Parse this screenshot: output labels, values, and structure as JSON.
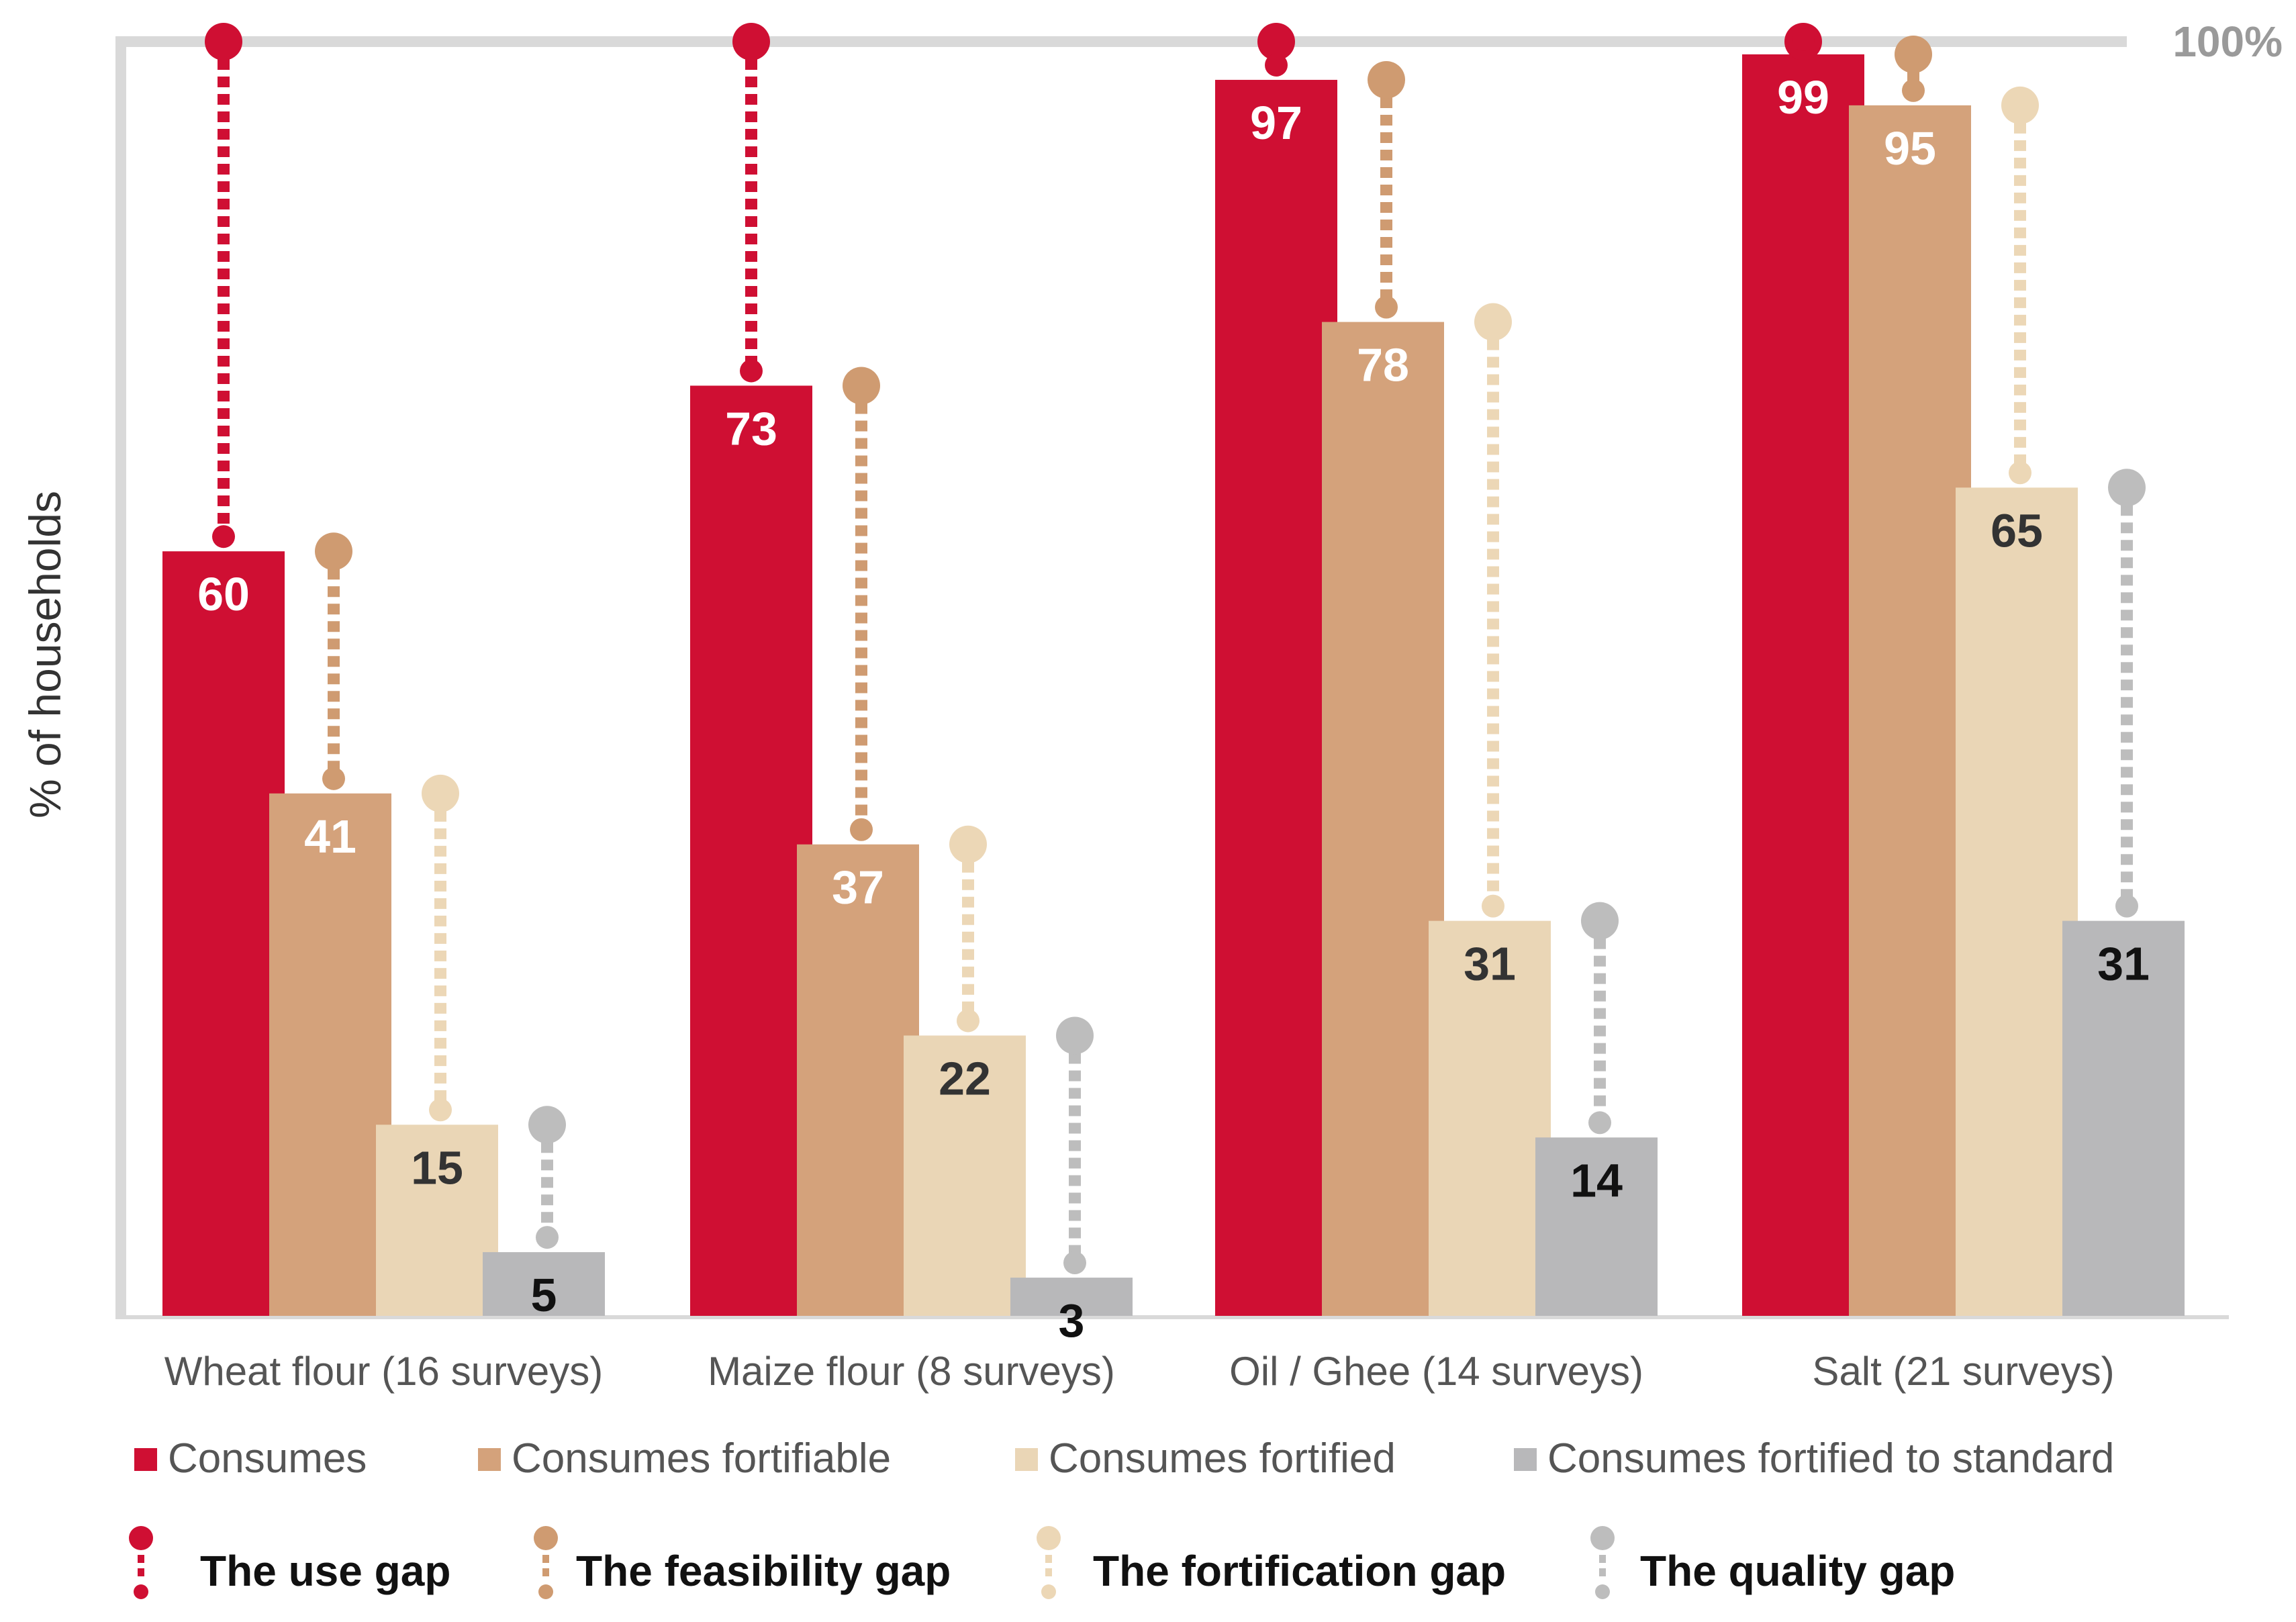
{
  "chart_data": {
    "type": "bar",
    "ylabel": "% of households",
    "top_label": "100%",
    "ylim": [
      0,
      100
    ],
    "grid": false,
    "legend_position": "bottom",
    "categories": [
      "Wheat flour (16 surveys)",
      "Maize flour (8 surveys)",
      "Oil / Ghee (14 surveys)",
      "Salt (21 surveys)"
    ],
    "series": [
      {
        "name": "Consumes",
        "color": "#cf0f33",
        "label_color": "#ffffff",
        "values": [
          60,
          73,
          97,
          99
        ]
      },
      {
        "name": "Consumes fortifiable",
        "color": "#d4a27b",
        "label_color": "#ffffff",
        "values": [
          41,
          37,
          78,
          95
        ]
      },
      {
        "name": "Consumes fortified",
        "color": "#ead6b6",
        "label_color": "#333333",
        "values": [
          15,
          22,
          31,
          65
        ]
      },
      {
        "name": "Consumes fortified to standard",
        "color": "#b8b8ba",
        "label_color": "#111111",
        "values": [
          5,
          3,
          14,
          31
        ]
      }
    ],
    "gaps": [
      {
        "name": "The use gap",
        "color": "#cf0f33"
      },
      {
        "name": "The feasibility gap",
        "color": "#cf9b71"
      },
      {
        "name": "The fortification gap",
        "color": "#ecd7b6"
      },
      {
        "name": "The quality gap",
        "color": "#bdbdbd"
      }
    ],
    "axis_color": "#d9d9d9"
  }
}
